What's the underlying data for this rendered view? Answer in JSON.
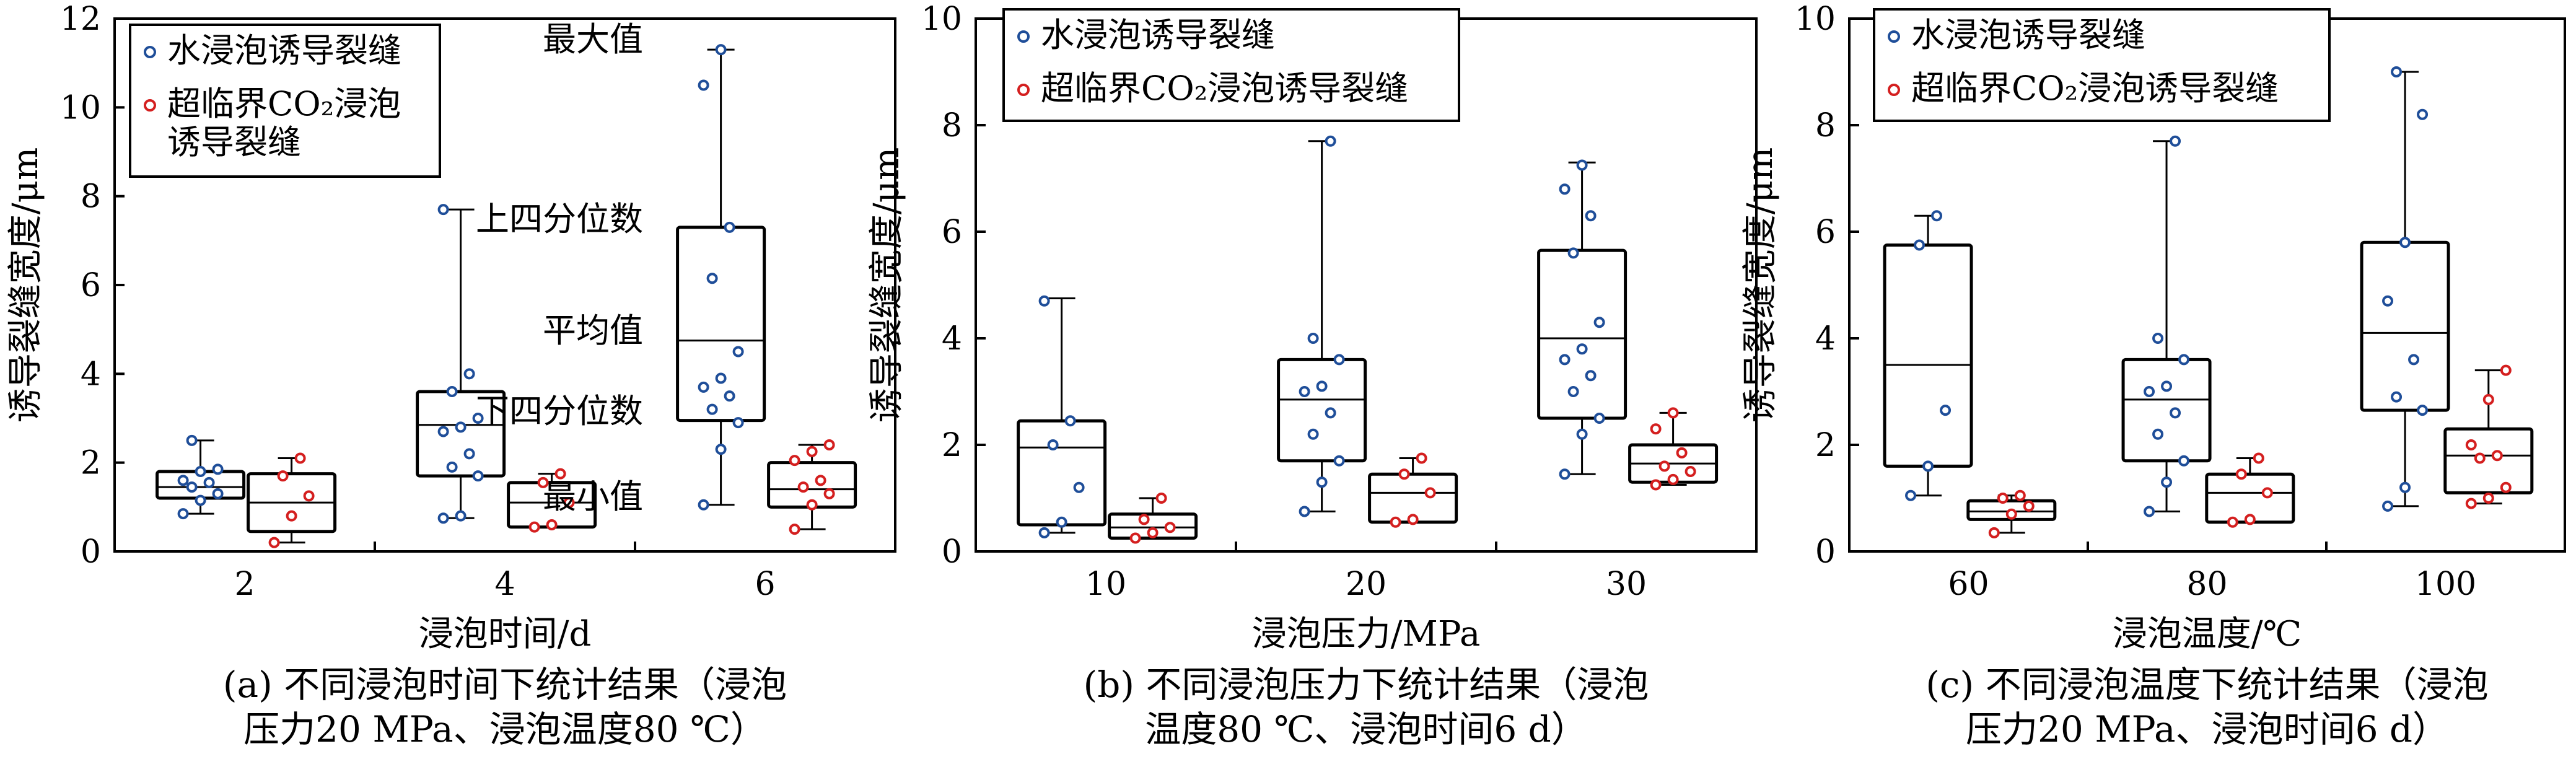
{
  "chart_data": [
    {
      "type": "box",
      "ylabel": "诱导裂缝宽度/μm",
      "xlabel": "浸泡时间/d",
      "caption_lines": [
        "(a) 不同浸泡时间下统计结果（浸泡",
        "压力20 MPa、浸泡温度80 ℃）"
      ],
      "categories": [
        "2",
        "4",
        "6"
      ],
      "ylim": [
        0,
        12
      ],
      "yticks": [
        "0",
        "2",
        "4",
        "6",
        "8",
        "10",
        "12"
      ],
      "legend": {
        "position": "top-left",
        "items": [
          {
            "label_lines": [
              "水浸泡诱导裂缝"
            ],
            "color": "#1f4e99"
          },
          {
            "label_lines": [
              "超临界CO₂浸泡",
              "诱导裂缝"
            ],
            "color": "#d41f1f"
          }
        ]
      },
      "annotations": [
        "最大值",
        "上四分位数",
        "平均值",
        "下四分位数",
        "最小值"
      ],
      "series": [
        {
          "name": "水浸泡诱导裂缝",
          "color": "#1f4e99",
          "boxes": [
            {
              "min": 0.85,
              "q1": 1.2,
              "mean": 1.45,
              "q3": 1.8,
              "max": 2.5,
              "points": [
                0.85,
                1.15,
                1.3,
                1.45,
                1.55,
                1.6,
                1.8,
                1.85,
                2.5
              ]
            },
            {
              "min": 0.75,
              "q1": 1.7,
              "mean": 2.85,
              "q3": 3.6,
              "max": 7.7,
              "points": [
                0.75,
                0.8,
                1.7,
                1.9,
                2.2,
                2.7,
                2.8,
                3.0,
                3.6,
                4.0,
                7.7
              ]
            },
            {
              "min": 1.05,
              "q1": 2.95,
              "mean": 4.75,
              "q3": 7.3,
              "max": 11.3,
              "points": [
                1.05,
                2.3,
                2.9,
                3.2,
                3.5,
                3.7,
                3.9,
                4.5,
                6.15,
                7.3,
                10.5,
                11.3
              ]
            }
          ]
        },
        {
          "name": "超临界CO₂浸泡诱导裂缝",
          "color": "#d41f1f",
          "boxes": [
            {
              "min": 0.2,
              "q1": 0.45,
              "mean": 1.1,
              "q3": 1.75,
              "max": 2.1,
              "points": [
                0.2,
                0.8,
                1.25,
                1.7,
                2.1
              ]
            },
            {
              "min": 0.55,
              "q1": 0.55,
              "mean": 1.1,
              "q3": 1.55,
              "max": 1.75,
              "points": [
                0.55,
                0.6,
                1.1,
                1.55,
                1.75
              ]
            },
            {
              "min": 0.5,
              "q1": 1.0,
              "mean": 1.4,
              "q3": 2.0,
              "max": 2.4,
              "points": [
                0.5,
                1.05,
                1.3,
                1.45,
                1.6,
                2.05,
                2.25,
                2.4
              ]
            }
          ]
        }
      ]
    },
    {
      "type": "box",
      "ylabel": "诱导裂缝宽度/μm",
      "xlabel": "浸泡压力/MPa",
      "caption_lines": [
        "(b) 不同浸泡压力下统计结果（浸泡",
        "温度80 ℃、浸泡时间6 d）"
      ],
      "categories": [
        "10",
        "20",
        "30"
      ],
      "ylim": [
        0,
        10
      ],
      "yticks": [
        "0",
        "2",
        "4",
        "6",
        "8",
        "10"
      ],
      "legend": {
        "position": "top-left",
        "items": [
          {
            "label_lines": [
              "水浸泡诱导裂缝"
            ],
            "color": "#1f4e99"
          },
          {
            "label_lines": [
              "超临界CO₂浸泡诱导裂缝"
            ],
            "color": "#d41f1f"
          }
        ]
      },
      "annotations": [],
      "series": [
        {
          "name": "水浸泡诱导裂缝",
          "color": "#1f4e99",
          "boxes": [
            {
              "min": 0.35,
              "q1": 0.5,
              "mean": 1.95,
              "q3": 2.45,
              "max": 4.75,
              "points": [
                0.35,
                0.55,
                1.2,
                2.0,
                2.45,
                4.7
              ]
            },
            {
              "min": 0.75,
              "q1": 1.7,
              "mean": 2.85,
              "q3": 3.6,
              "max": 7.7,
              "points": [
                0.75,
                1.3,
                1.7,
                2.2,
                2.6,
                3.0,
                3.1,
                3.6,
                4.0,
                7.7
              ]
            },
            {
              "min": 1.45,
              "q1": 2.5,
              "mean": 4.0,
              "q3": 5.65,
              "max": 7.3,
              "points": [
                1.45,
                2.2,
                2.5,
                3.0,
                3.3,
                3.6,
                3.8,
                4.3,
                5.6,
                6.3,
                6.8,
                7.25
              ]
            }
          ]
        },
        {
          "name": "超临界CO₂浸泡诱导裂缝",
          "color": "#d41f1f",
          "boxes": [
            {
              "min": 0.25,
              "q1": 0.25,
              "mean": 0.45,
              "q3": 0.7,
              "max": 1.0,
              "points": [
                0.25,
                0.35,
                0.45,
                0.6,
                1.0
              ]
            },
            {
              "min": 0.55,
              "q1": 0.55,
              "mean": 1.1,
              "q3": 1.45,
              "max": 1.75,
              "points": [
                0.55,
                0.6,
                1.1,
                1.45,
                1.75
              ]
            },
            {
              "min": 1.25,
              "q1": 1.3,
              "mean": 1.65,
              "q3": 2.0,
              "max": 2.6,
              "points": [
                1.25,
                1.35,
                1.5,
                1.6,
                1.85,
                2.3,
                2.6
              ]
            }
          ]
        }
      ]
    },
    {
      "type": "box",
      "ylabel": "诱导裂缝宽度/μm",
      "xlabel": "浸泡温度/℃",
      "caption_lines": [
        "(c) 不同浸泡温度下统计结果（浸泡",
        "压力20 MPa、浸泡时间6 d）"
      ],
      "categories": [
        "60",
        "80",
        "100"
      ],
      "ylim": [
        0,
        10
      ],
      "yticks": [
        "0",
        "2",
        "4",
        "6",
        "8",
        "10"
      ],
      "legend": {
        "position": "top-left",
        "items": [
          {
            "label_lines": [
              "水浸泡诱导裂缝"
            ],
            "color": "#1f4e99"
          },
          {
            "label_lines": [
              "超临界CO₂浸泡诱导裂缝"
            ],
            "color": "#d41f1f"
          }
        ]
      },
      "annotations": [],
      "series": [
        {
          "name": "水浸泡诱导裂缝",
          "color": "#1f4e99",
          "boxes": [
            {
              "min": 1.05,
              "q1": 1.6,
              "mean": 3.5,
              "q3": 5.75,
              "max": 6.3,
              "points": [
                1.05,
                1.6,
                2.65,
                5.75,
                6.3
              ]
            },
            {
              "min": 0.75,
              "q1": 1.7,
              "mean": 2.85,
              "q3": 3.6,
              "max": 7.7,
              "points": [
                0.75,
                1.3,
                1.7,
                2.2,
                2.6,
                3.0,
                3.1,
                3.6,
                4.0,
                7.7
              ]
            },
            {
              "min": 0.85,
              "q1": 2.65,
              "mean": 4.1,
              "q3": 5.8,
              "max": 9.0,
              "points": [
                0.85,
                1.2,
                2.65,
                2.9,
                3.6,
                4.7,
                5.8,
                8.2,
                9.0
              ]
            }
          ]
        },
        {
          "name": "超临界CO₂浸泡诱导裂缝",
          "color": "#d41f1f",
          "boxes": [
            {
              "min": 0.35,
              "q1": 0.6,
              "mean": 0.75,
              "q3": 0.95,
              "max": 1.05,
              "points": [
                0.35,
                0.7,
                0.85,
                1.0,
                1.05
              ]
            },
            {
              "min": 0.55,
              "q1": 0.55,
              "mean": 1.1,
              "q3": 1.45,
              "max": 1.75,
              "points": [
                0.55,
                0.6,
                1.1,
                1.45,
                1.75
              ]
            },
            {
              "min": 0.9,
              "q1": 1.1,
              "mean": 1.8,
              "q3": 2.3,
              "max": 3.4,
              "points": [
                0.9,
                1.0,
                1.2,
                1.75,
                1.8,
                2.0,
                2.85,
                3.4
              ]
            }
          ]
        }
      ]
    }
  ]
}
